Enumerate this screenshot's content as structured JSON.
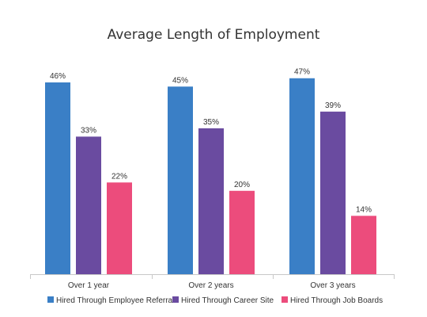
{
  "chart_data": {
    "type": "bar",
    "title": "Average Length of Employment",
    "categories": [
      "Over 1 year",
      "Over 2 years",
      "Over 3 years"
    ],
    "series": [
      {
        "name": "Hired Through Employee Referral",
        "values": [
          46,
          45,
          47
        ],
        "labels": [
          "46%",
          "45%",
          "47%"
        ],
        "color": "#3a7fc6"
      },
      {
        "name": "Hired Through Career Site",
        "values": [
          33,
          35,
          39
        ],
        "labels": [
          "33%",
          "35%",
          "39%"
        ],
        "color": "#6a4ba0"
      },
      {
        "name": "Hired Through Job Boards",
        "values": [
          22,
          20,
          14
        ],
        "labels": [
          "22%",
          "20%",
          "14%"
        ],
        "color": "#ec4c7c"
      }
    ],
    "ylim": [
      0,
      50
    ],
    "xlabel": "",
    "ylabel": "",
    "grid": false,
    "legend_position": "bottom"
  }
}
